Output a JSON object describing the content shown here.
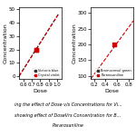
{
  "chart_data": [
    {
      "type": "line",
      "xlabel": "Dose",
      "ylabel": "Concentration",
      "xlim": [
        0.55,
        1.05
      ],
      "ylim": [
        -2,
        52
      ],
      "xticks": [
        0.6,
        0.7,
        0.8,
        0.9,
        1.0
      ],
      "yticks": [
        0,
        10,
        20,
        30,
        40,
        50
      ],
      "legend": "lower right",
      "series": [
        {
          "name": "Victoria blue",
          "color": "#333333",
          "marker": "s",
          "line_style": "dashed",
          "x": [
            0.55,
            1.02
          ],
          "values": [
            0,
            47
          ],
          "point_x": [
            0.75
          ],
          "point_values": [
            20
          ]
        },
        {
          "name": "Crystal violet",
          "color": "#cc0000",
          "marker": "s",
          "line_style": "dashed",
          "x": [
            0.55,
            1.02
          ],
          "values": [
            0,
            47
          ],
          "point_x": [
            0.75
          ],
          "point_values": [
            20
          ]
        }
      ]
    },
    {
      "type": "line",
      "xlabel": "Dose",
      "ylabel": "Concentration",
      "xlim": [
        0.15,
        0.88
      ],
      "ylim": [
        90,
        320
      ],
      "xticks": [
        0.2,
        0.4,
        0.6,
        0.8
      ],
      "yticks": [
        100,
        150,
        200,
        250,
        300
      ],
      "legend": "lower right",
      "series": [
        {
          "name": "Bromocresol green",
          "color": "#333333",
          "marker": "s",
          "line_style": "dashed"
        },
        {
          "name": "Pararosaniline",
          "color": "#cc0000",
          "marker": "s",
          "line_style": "dashed",
          "x": [
            0.15,
            0.88
          ],
          "values": [
            90.8256880733945,
            275
          ],
          "point_x": [
            0.55
          ],
          "point_values": [
            200
          ]
        }
      ]
    }
  ],
  "caption": [
    "ing the effect of Dose v/s Concentrations for Vi...",
    "showing effect of DoseVrs Concentration for B...",
    "Pararosaniline"
  ]
}
